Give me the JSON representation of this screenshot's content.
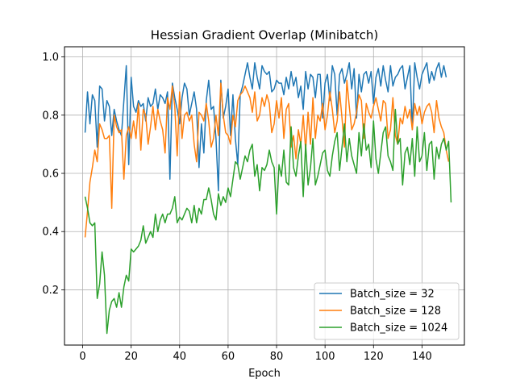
{
  "chart_data": {
    "type": "line",
    "title": "Hessian Gradient Overlap (Minibatch)",
    "xlabel": "Epoch",
    "ylabel": "",
    "xlim": [
      -7.5,
      157.5
    ],
    "ylim": [
      0.01,
      1.035
    ],
    "xticks": [
      0,
      20,
      40,
      60,
      80,
      100,
      120,
      140
    ],
    "yticks": [
      0.2,
      0.4,
      0.6,
      0.8,
      1.0
    ],
    "xtick_labels": [
      "0",
      "20",
      "40",
      "60",
      "80",
      "100",
      "120",
      "140"
    ],
    "ytick_labels": [
      "0.2",
      "0.4",
      "0.6",
      "0.8",
      "1.0"
    ],
    "grid": true,
    "legend_position": "lower-right",
    "series": [
      {
        "name": "Batch_size = 32",
        "color": "#1f77b4",
        "values": [
          0.74,
          0.88,
          0.77,
          0.87,
          0.85,
          0.69,
          0.9,
          0.89,
          0.78,
          0.85,
          0.83,
          0.73,
          0.82,
          0.78,
          0.75,
          0.73,
          0.85,
          0.97,
          0.63,
          0.93,
          0.83,
          0.81,
          0.85,
          0.83,
          0.84,
          0.78,
          0.86,
          0.83,
          0.84,
          0.89,
          0.82,
          0.87,
          0.86,
          0.84,
          0.88,
          0.58,
          0.91,
          0.86,
          0.82,
          0.77,
          0.86,
          0.91,
          0.89,
          0.8,
          0.84,
          0.88,
          0.82,
          0.62,
          0.77,
          0.67,
          0.85,
          0.92,
          0.82,
          0.83,
          0.72,
          0.54,
          0.92,
          0.79,
          0.83,
          0.89,
          0.73,
          0.87,
          0.72,
          0.63,
          0.87,
          0.9,
          0.94,
          0.98,
          0.93,
          0.89,
          0.98,
          0.93,
          0.89,
          0.97,
          0.95,
          0.94,
          0.95,
          0.88,
          0.89,
          0.92,
          0.91,
          0.91,
          0.87,
          0.93,
          0.89,
          0.95,
          0.9,
          0.93,
          0.86,
          0.9,
          0.82,
          0.95,
          0.89,
          0.94,
          0.93,
          0.86,
          0.94,
          0.94,
          0.79,
          0.91,
          0.94,
          0.85,
          0.97,
          0.94,
          0.8,
          0.94,
          0.96,
          0.91,
          0.94,
          0.98,
          0.89,
          0.96,
          0.79,
          0.94,
          0.88,
          0.94,
          0.95,
          0.91,
          0.95,
          0.84,
          0.93,
          0.96,
          0.9,
          0.97,
          0.92,
          0.88,
          0.97,
          0.9,
          0.93,
          0.94,
          0.96,
          0.97,
          0.89,
          0.93,
          0.97,
          0.75,
          0.98,
          0.93,
          0.89,
          0.94,
          0.96,
          0.98,
          0.91,
          0.95,
          0.92,
          0.96,
          0.98,
          0.93,
          0.97,
          0.93
        ],
        "display_as": "synthetic"
      },
      {
        "name": "Batch_size = 128",
        "color": "#ff7f0e",
        "values": [
          0.38,
          0.47,
          0.57,
          0.62,
          0.68,
          0.64,
          0.77,
          0.75,
          0.72,
          0.72,
          0.73,
          0.48,
          0.8,
          0.76,
          0.74,
          0.75,
          0.58,
          0.73,
          0.76,
          0.72,
          0.78,
          0.72,
          0.84,
          0.68,
          0.82,
          0.8,
          0.7,
          0.76,
          0.83,
          0.75,
          0.82,
          0.78,
          0.75,
          0.67,
          0.86,
          0.82,
          0.9,
          0.83,
          0.66,
          0.88,
          0.72,
          0.8,
          0.81,
          0.78,
          0.8,
          0.7,
          0.64,
          0.81,
          0.8,
          0.78,
          0.84,
          0.78,
          0.69,
          0.72,
          0.8,
          0.73,
          0.91,
          0.8,
          0.74,
          0.73,
          0.7,
          0.8,
          0.76,
          0.85,
          0.87,
          0.88,
          0.9,
          0.88,
          0.86,
          0.81,
          0.88,
          0.78,
          0.8,
          0.86,
          0.83,
          0.87,
          0.84,
          0.74,
          0.77,
          0.85,
          0.79,
          0.86,
          0.72,
          0.82,
          0.84,
          0.69,
          0.73,
          0.65,
          0.75,
          0.7,
          0.8,
          0.68,
          0.81,
          0.7,
          0.86,
          0.72,
          0.8,
          0.78,
          0.84,
          0.75,
          0.8,
          0.88,
          0.82,
          0.74,
          0.78,
          0.88,
          0.79,
          0.69,
          0.92,
          0.83,
          0.75,
          0.77,
          0.81,
          0.87,
          0.85,
          0.72,
          0.84,
          0.81,
          0.79,
          0.83,
          0.86,
          0.82,
          0.78,
          0.85,
          0.84,
          0.72,
          0.75,
          0.86,
          0.73,
          0.7,
          0.79,
          0.77,
          0.83,
          0.79,
          0.82,
          0.75,
          0.84,
          0.8,
          0.83,
          0.77,
          0.81,
          0.83,
          0.84,
          0.81,
          0.74,
          0.85,
          0.79,
          0.76,
          0.74,
          0.68,
          0.64
        ],
        "display_as": "synthetic"
      },
      {
        "name": "Batch_size = 1024",
        "color": "#2ca02c",
        "values": [
          0.52,
          0.48,
          0.43,
          0.42,
          0.43,
          0.17,
          0.22,
          0.33,
          0.25,
          0.05,
          0.13,
          0.16,
          0.17,
          0.14,
          0.19,
          0.14,
          0.21,
          0.25,
          0.23,
          0.34,
          0.33,
          0.34,
          0.35,
          0.37,
          0.42,
          0.36,
          0.38,
          0.4,
          0.38,
          0.46,
          0.4,
          0.44,
          0.46,
          0.43,
          0.46,
          0.46,
          0.48,
          0.52,
          0.43,
          0.45,
          0.44,
          0.46,
          0.48,
          0.47,
          0.43,
          0.49,
          0.43,
          0.48,
          0.46,
          0.51,
          0.51,
          0.55,
          0.51,
          0.46,
          0.44,
          0.53,
          0.49,
          0.52,
          0.5,
          0.55,
          0.52,
          0.58,
          0.64,
          0.63,
          0.58,
          0.62,
          0.66,
          0.64,
          0.68,
          0.7,
          0.59,
          0.63,
          0.54,
          0.62,
          0.61,
          0.63,
          0.68,
          0.64,
          0.62,
          0.46,
          0.63,
          0.59,
          0.68,
          0.57,
          0.56,
          0.76,
          0.62,
          0.59,
          0.66,
          0.71,
          0.52,
          0.7,
          0.56,
          0.62,
          0.72,
          0.56,
          0.59,
          0.63,
          0.67,
          0.68,
          0.61,
          0.59,
          0.66,
          0.71,
          0.74,
          0.61,
          0.69,
          0.77,
          0.64,
          0.72,
          0.66,
          0.63,
          0.6,
          0.74,
          0.66,
          0.77,
          0.68,
          0.7,
          0.62,
          0.78,
          0.65,
          0.6,
          0.67,
          0.74,
          0.76,
          0.66,
          0.64,
          0.61,
          0.82,
          0.7,
          0.72,
          0.56,
          0.67,
          0.69,
          0.63,
          0.72,
          0.59,
          0.76,
          0.64,
          0.66,
          0.74,
          0.61,
          0.7,
          0.71,
          0.58,
          0.69,
          0.65,
          0.7,
          0.72,
          0.68,
          0.71,
          0.5
        ],
        "display_as": "synthetic"
      }
    ]
  }
}
